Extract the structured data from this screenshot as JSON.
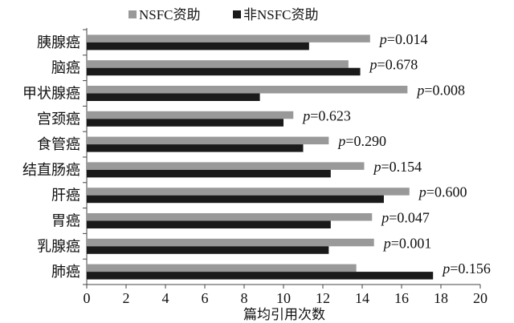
{
  "chart_data": {
    "type": "bar",
    "orientation": "horizontal",
    "categories": [
      "胰腺癌",
      "脑癌",
      "甲状腺癌",
      "宫颈癌",
      "食管癌",
      "结直肠癌",
      "肝癌",
      "胃癌",
      "乳腺癌",
      "肺癌"
    ],
    "series": [
      {
        "name": "NSFC资助",
        "color": "#999999",
        "values": [
          14.4,
          13.3,
          16.3,
          10.5,
          12.3,
          14.1,
          16.4,
          14.5,
          14.6,
          13.7
        ]
      },
      {
        "name": "非NSFC资助",
        "color": "#1a1a1a",
        "values": [
          11.3,
          13.9,
          8.8,
          10.0,
          11.0,
          12.4,
          15.1,
          12.4,
          12.3,
          17.6
        ]
      }
    ],
    "p_prefix": "p",
    "p_values": [
      "=0.014",
      "=0.678",
      "=0.008",
      "=0.623",
      "=0.290",
      "=0.154",
      "=0.600",
      "=0.047",
      "=0.001",
      "=0.156"
    ],
    "xlabel": "篇均引用次数",
    "xlim": [
      0,
      20
    ],
    "xticks": [
      0,
      2,
      4,
      6,
      8,
      10,
      12,
      14,
      16,
      18,
      20
    ],
    "legend_position": "top"
  }
}
